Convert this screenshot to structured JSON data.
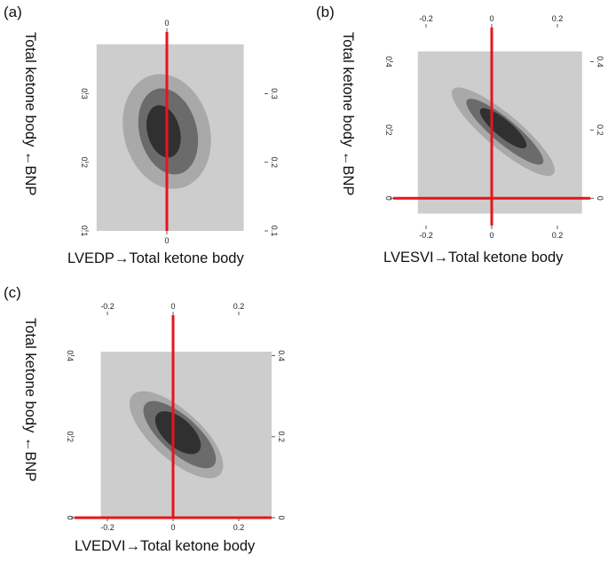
{
  "colors": {
    "background_region": "#cdcdcd",
    "contour_outer": "#a9a9a9",
    "contour_middle": "#6b6b6b",
    "contour_inner": "#303030",
    "reference_line": "#e8141c"
  },
  "chart_data": [
    {
      "panel_label": "(a)",
      "type": "heatmap",
      "subtype": "2D posterior density contour (HPD regions)",
      "xlabel": "LVEDP→Total ketone body",
      "ylabel": "Total ketone body ←BNP",
      "xlim": [
        -0.12,
        0.15
      ],
      "ylim": [
        0.1,
        0.39
      ],
      "x_ticks": [
        "0"
      ],
      "x_tick_values": [
        0
      ],
      "y_ticks": [
        "0.1",
        "0.2",
        "0.3"
      ],
      "y_tick_values": [
        0.1,
        0.2,
        0.3
      ],
      "shaded_region": {
        "x": [
          -0.108,
          0.118
        ],
        "y": [
          0.1,
          0.372
        ]
      },
      "reference_lines": {
        "x": [
          0
        ]
      },
      "contours": [
        {
          "level": "outer",
          "center": [
            0.0,
            0.245
          ],
          "rx": 0.066,
          "ry": 0.085,
          "rotation_deg": -15
        },
        {
          "level": "middle",
          "center": [
            0.002,
            0.245
          ],
          "rx": 0.044,
          "ry": 0.064,
          "rotation_deg": -15
        },
        {
          "level": "inner",
          "center": [
            -0.005,
            0.245
          ],
          "rx": 0.025,
          "ry": 0.039,
          "rotation_deg": -15
        }
      ]
    },
    {
      "panel_label": "(b)",
      "type": "heatmap",
      "subtype": "2D posterior density contour (HPD regions)",
      "xlabel": "LVESVI→Total ketone body",
      "ylabel": "Total ketone body ←BNP",
      "xlim": [
        -0.3,
        0.3
      ],
      "ylim": [
        -0.08,
        0.5
      ],
      "x_ticks": [
        "-0.2",
        "0",
        "0.2"
      ],
      "x_tick_values": [
        -0.2,
        0,
        0.2
      ],
      "y_ticks": [
        "0",
        "0.2",
        "0.4"
      ],
      "y_tick_values": [
        0,
        0.2,
        0.4
      ],
      "shaded_region": {
        "x": [
          -0.225,
          0.275
        ],
        "y": [
          -0.045,
          0.43
        ]
      },
      "reference_lines": {
        "x": [
          0
        ],
        "y": [
          0
        ]
      },
      "contours": [
        {
          "level": "outer",
          "center": [
            0.035,
            0.195
          ],
          "rx": 0.2,
          "ry": 0.05,
          "rotation_deg": 40
        },
        {
          "level": "middle",
          "center": [
            0.04,
            0.195
          ],
          "rx": 0.15,
          "ry": 0.035,
          "rotation_deg": 40
        },
        {
          "level": "inner",
          "center": [
            0.035,
            0.205
          ],
          "rx": 0.09,
          "ry": 0.025,
          "rotation_deg": 40
        }
      ]
    },
    {
      "panel_label": "(c)",
      "type": "heatmap",
      "subtype": "2D posterior density contour (HPD regions)",
      "xlabel": "LVEDVI→Total ketone body",
      "ylabel": "Total ketone body ←BNP",
      "xlim": [
        -0.3,
        0.3
      ],
      "ylim": [
        0,
        0.5
      ],
      "x_ticks": [
        "-0.2",
        "0",
        "0.2"
      ],
      "x_tick_values": [
        -0.2,
        0,
        0.2
      ],
      "y_ticks": [
        "0",
        "0.2",
        "0.4"
      ],
      "y_tick_values": [
        0,
        0.2,
        0.4
      ],
      "shaded_region": {
        "x": [
          -0.22,
          0.3
        ],
        "y": [
          0,
          0.41
        ]
      },
      "reference_lines": {
        "x": [
          0
        ],
        "y": [
          0
        ]
      },
      "contours": [
        {
          "level": "outer",
          "center": [
            0.01,
            0.205
          ],
          "rx": 0.18,
          "ry": 0.06,
          "rotation_deg": 42
        },
        {
          "level": "middle",
          "center": [
            0.02,
            0.205
          ],
          "rx": 0.14,
          "ry": 0.045,
          "rotation_deg": 42
        },
        {
          "level": "inner",
          "center": [
            0.015,
            0.21
          ],
          "rx": 0.085,
          "ry": 0.035,
          "rotation_deg": 42
        }
      ]
    }
  ]
}
